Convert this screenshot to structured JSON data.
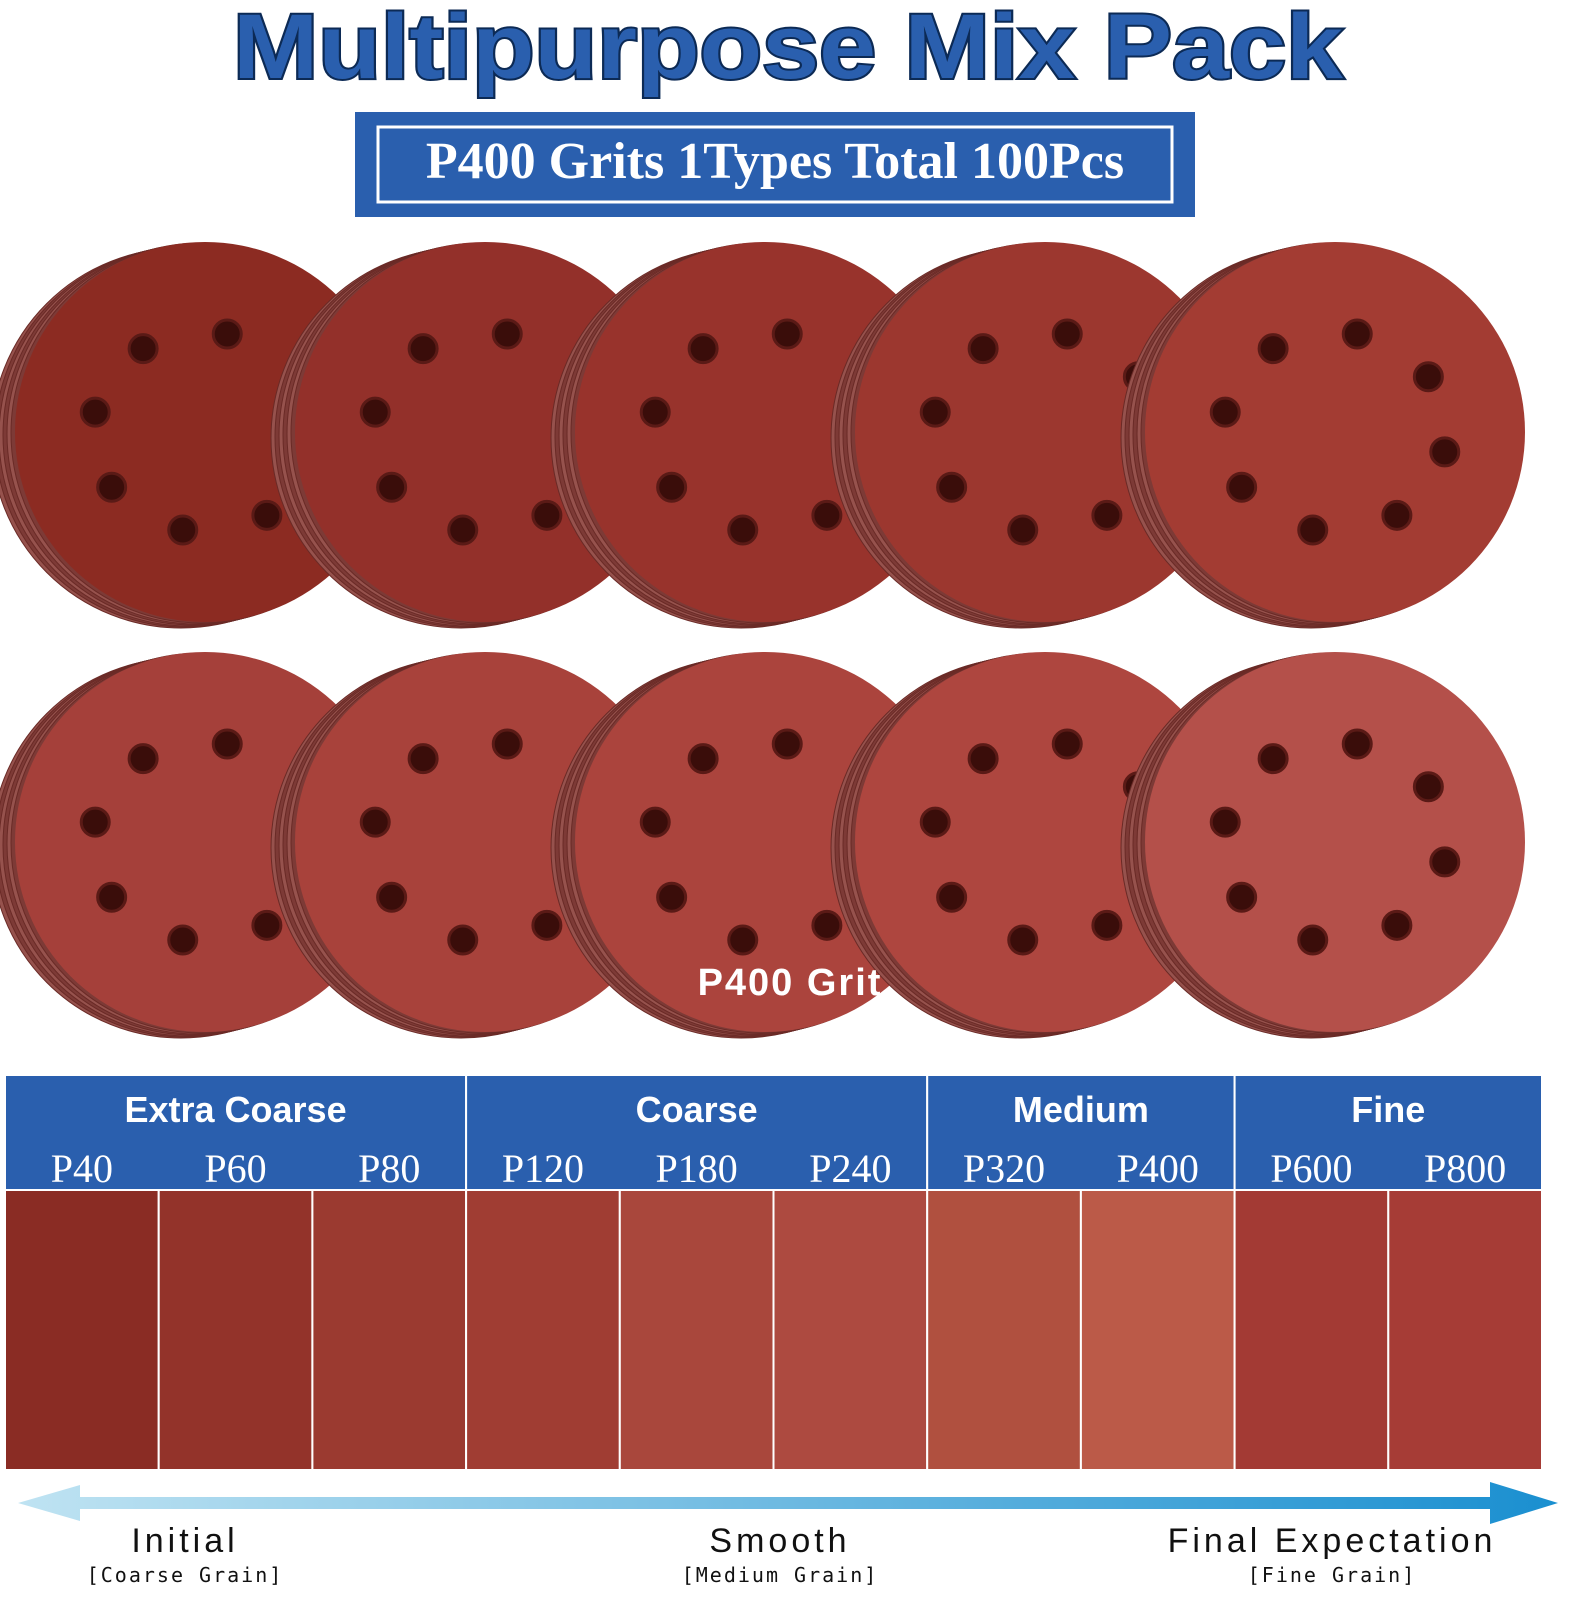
{
  "title": "Multipurpose Mix Pack",
  "subtitle": "P400 Grits 1Types Total 100Pcs",
  "disc_label": "P400 Grit",
  "groups": [
    {
      "name": "Extra Coarse",
      "grits": [
        "P40",
        "P60",
        "P80"
      ]
    },
    {
      "name": "Coarse",
      "grits": [
        "P120",
        "P180",
        "P240"
      ]
    },
    {
      "name": "Medium",
      "grits": [
        "P320",
        "P400"
      ]
    },
    {
      "name": "Fine",
      "grits": [
        "P600",
        "P800"
      ]
    }
  ],
  "progression": [
    {
      "label": "Initial",
      "note": "[Coarse Grain]"
    },
    {
      "label": "Smooth",
      "note": "[Medium Grain]"
    },
    {
      "label": "Final Expectation",
      "note": "[Fine Grain]"
    }
  ]
}
